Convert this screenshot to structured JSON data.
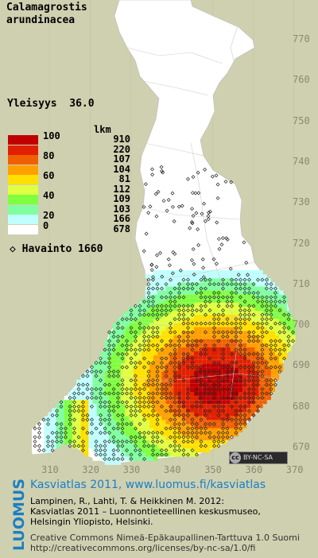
{
  "species": {
    "line1": "Calamagrostis",
    "line2": "arundinacea"
  },
  "frequency": {
    "label": "Yleisyys",
    "value": "36.0"
  },
  "legend": {
    "count_header": "lkm",
    "classes": [
      {
        "label": "100",
        "count": "910",
        "color": "#c00000"
      },
      {
        "label": "",
        "count": "220",
        "color": "#e02000"
      },
      {
        "label": "80",
        "count": "107",
        "color": "#f06000"
      },
      {
        "label": "",
        "count": "104",
        "color": "#ffa000"
      },
      {
        "label": "60",
        "count": "81",
        "color": "#ffe000"
      },
      {
        "label": "",
        "count": "112",
        "color": "#e0ff40"
      },
      {
        "label": "40",
        "count": "109",
        "color": "#80ff40"
      },
      {
        "label": "",
        "count": "103",
        "color": "#80ffa0"
      },
      {
        "label": "20",
        "count": "166",
        "color": "#c0ffff"
      },
      {
        "label": "0",
        "count": "678",
        "color": "#ffffff"
      }
    ],
    "class_label_rows": [
      "100",
      "80",
      "60",
      "40",
      "20",
      "0"
    ]
  },
  "observations": {
    "symbol": "◇",
    "label": "Havainto",
    "value": "1660"
  },
  "y_axis": [
    "770",
    "760",
    "750",
    "740",
    "730",
    "720",
    "710",
    "700",
    "690",
    "680",
    "670"
  ],
  "x_axis": [
    "310",
    "320",
    "330",
    "340",
    "350",
    "360",
    "370"
  ],
  "license_badge": "BY-NC-SA",
  "footer": {
    "logo": "LUOMUS",
    "headline": "Kasviatlas 2011, www.luomus.fi/kasviatlas",
    "citation_line1": "Lampinen, R., Lahti, T. & Heikkinen M. 2012:",
    "citation_line2": "Kasviatlas 2011 – Luonnontieteellinen keskusmuseo,",
    "citation_line3": "Helsingin Yliopisto, Helsinki.",
    "license_line1": "Creative Commons Nimeä-Epäkaupallinen-Tarttuva 1.0 Suomi",
    "license_line2": "http://creativecommons.org/licenses/by-nc-sa/1.0/fi"
  },
  "colors": {
    "background": "#cfd0b0",
    "land": "#ffffff",
    "brand_blue": "#1a7fc4",
    "axis_label": "#888a73"
  }
}
